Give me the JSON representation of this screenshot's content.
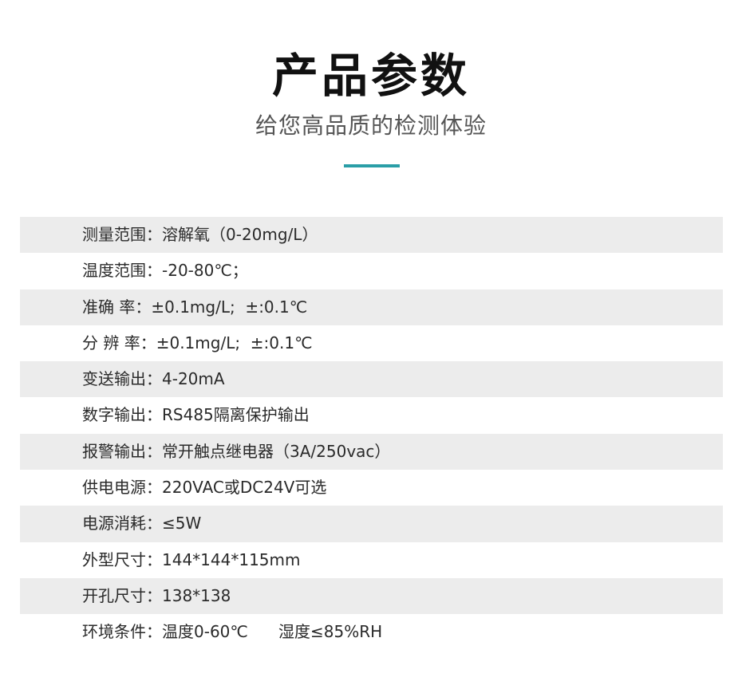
{
  "header": {
    "title": "产品参数",
    "subtitle": "给您高品质的检测体验",
    "accent_color": "#2a9ea7"
  },
  "params": [
    "测量范围：溶解氧（0-20mg/L）",
    "温度范围：-20-80℃；",
    "准确 率：±0.1mg/L;  ±:0.1℃",
    "分 辨 率：±0.1mg/L;  ±:0.1℃",
    "变送输出：4-20mA",
    "数字输出：RS485隔离保护输出",
    "报警输出：常开触点继电器（3A/250vac）",
    "供电电源：220VAC或DC24V可选",
    "电源消耗：≤5W",
    "外型尺寸：144*144*115mm",
    "开孔尺寸：138*138",
    "环境条件：温度0-60℃      湿度≤85%RH"
  ]
}
